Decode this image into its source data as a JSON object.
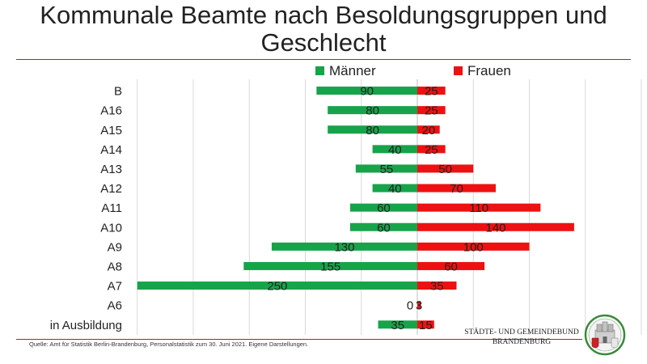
{
  "title": "Kommunale Beamte nach Besoldungsgruppen und Geschlecht",
  "chart_data": {
    "type": "bar",
    "orientation": "horizontal-diverging",
    "title": "Kommunale Beamte nach Besoldungsgruppen und Geschlecht",
    "categories": [
      "B",
      "A16",
      "A15",
      "A14",
      "A13",
      "A12",
      "A11",
      "A10",
      "A9",
      "A8",
      "A7",
      "A6",
      "in Ausbildung"
    ],
    "series": [
      {
        "name": "Männer",
        "color": "#17a34a",
        "values": [
          90,
          80,
          80,
          40,
          55,
          40,
          60,
          60,
          130,
          155,
          250,
          0,
          35
        ]
      },
      {
        "name": "Frauen",
        "color": "#ee1111",
        "values": [
          25,
          25,
          20,
          25,
          50,
          70,
          110,
          140,
          100,
          60,
          35,
          3,
          15
        ]
      }
    ],
    "legend_position": "top",
    "grid": "vertical",
    "data_labels": true
  },
  "footer": {
    "source": "Quelle: Amt für Statistik Berlin-Brandenburg, Personalstatistik zum 30. Juni 2021. Eigene Darstellungen.",
    "brand_line1": "STÄDTE- UND GEMEINDEBUND",
    "brand_line2": "BRANDENBURG",
    "logo_icon": "coat-of-arms-icon"
  }
}
